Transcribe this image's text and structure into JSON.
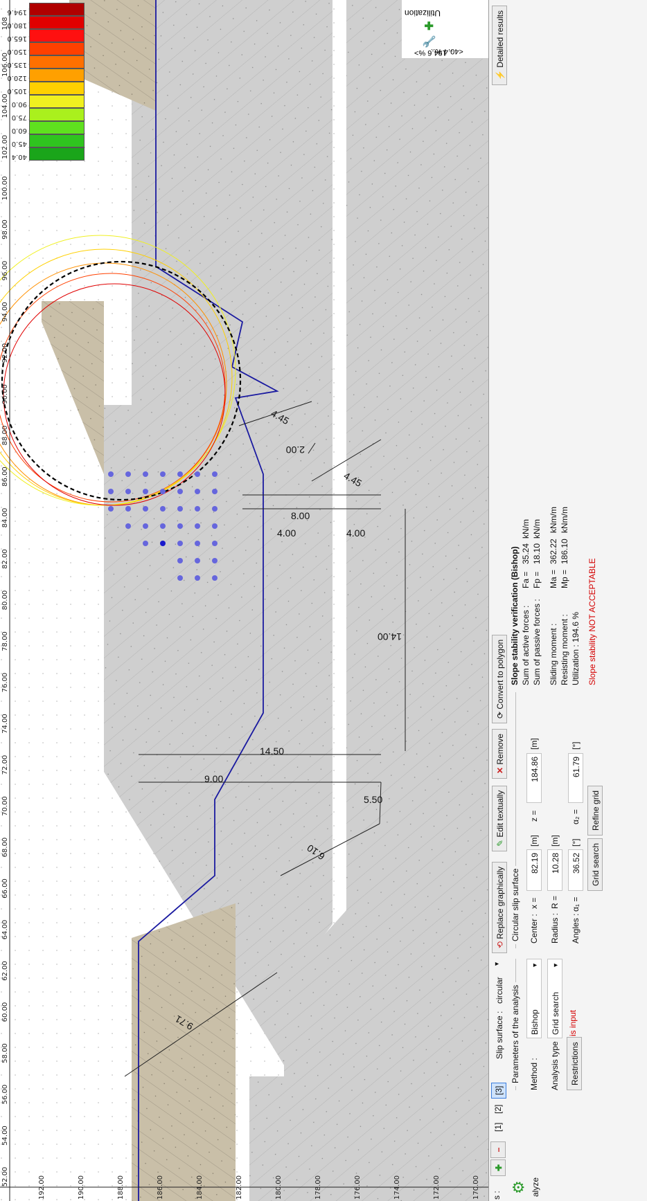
{
  "axes": {
    "x_unit": "[m]",
    "x_ticks": [
      "52.00",
      "54.00",
      "56.00",
      "58.00",
      "60.00",
      "62.00",
      "64.00",
      "66.00",
      "68.00",
      "70.00",
      "72.00",
      "74.00",
      "76.00",
      "78.00",
      "80.00",
      "82.00",
      "84.00",
      "86.00",
      "88.00",
      "90.00",
      "92.00",
      "94.00",
      "96.00",
      "98.00",
      "100.00",
      "102.00",
      "104.00",
      "106.00",
      "108"
    ],
    "y_ticks": [
      "170.00",
      "172.00",
      "174.00",
      "176.00",
      "178.00",
      "180.00",
      "182.00",
      "184.00",
      "186.00",
      "188.00",
      "190.00",
      "192.00"
    ]
  },
  "dimensions": [
    "9.71",
    "6.10",
    "5.50",
    "9.00",
    "14.50",
    "14.00",
    "4.00",
    "4.00",
    "8.00",
    "4.45",
    "2.00",
    "4.45"
  ],
  "legend": {
    "values": [
      "40.4",
      "45.0",
      "60.0",
      "75.0",
      "90.0",
      "105.0",
      "120.0",
      "135.0",
      "150.0",
      "165.0",
      "180.0",
      "194.6"
    ],
    "colors": [
      "#1aa51a",
      "#2fc41f",
      "#5fe01f",
      "#aaf01d",
      "#f0f020",
      "#ffd000",
      "#ffa000",
      "#ff7000",
      "#ff4000",
      "#ff1010",
      "#e00000",
      "#b00000"
    ]
  },
  "utilization_panel": {
    "title": "Utilization",
    "range_min": "<40.4 %..",
    "range_max": ".. 194.6 %>"
  },
  "toolbar": {
    "slip_surface_label": "Slip surface :",
    "slip_surface_value": "circular",
    "replace_graphically": "Replace graphically",
    "edit_textually": "Edit textually",
    "remove": "Remove",
    "convert_to_polygon": "Convert to polygon",
    "detailed_results": "Detailed results",
    "analyze": "alyze",
    "stages_label": "s :",
    "tabs": [
      "[1]",
      "[2]",
      "[3]"
    ]
  },
  "params": {
    "group_title": "Parameters of the analysis",
    "method_label": "Method :",
    "method_value": "Bishop",
    "analysis_type_label": "Analysis type :",
    "analysis_type_value": "Grid search",
    "restrictions_button": "Restrictions",
    "restrictions_status": "is input"
  },
  "circular": {
    "group_title": "Circular slip surface",
    "center_label": "Center :",
    "x_label": "x =",
    "x_value": "82.19",
    "x_unit": "[m]",
    "z_label": "z =",
    "z_value": "184.86",
    "z_unit": "[m]",
    "radius_label": "Radius :",
    "r_label": "R =",
    "r_value": "10.28",
    "r_unit": "[m]",
    "angles_label": "Angles :",
    "a1_label": "α₁ =",
    "a1_value": "36.52",
    "a1_unit": "[°]",
    "a2_label": "α₂ =",
    "a2_value": "61.79",
    "a2_unit": "[°]",
    "grid_search_button": "Grid search",
    "refine_grid_button": "Refine grid"
  },
  "results": {
    "title": "Slope stability verification (Bishop)",
    "active_label": "Sum of active forces :",
    "active_sym": "Fa =",
    "active_value": "35.24",
    "active_unit": "kN/m",
    "passive_label": "Sum of passive forces :",
    "passive_sym": "Fp =",
    "passive_value": "18.10",
    "passive_unit": "kN/m",
    "sliding_label": "Sliding moment :",
    "sliding_sym": "Ma =",
    "sliding_value": "362.22",
    "sliding_unit": "kNm/m",
    "resisting_label": "Resisting moment :",
    "resisting_sym": "Mp =",
    "resisting_value": "186.10",
    "resisting_unit": "kNm/m",
    "utilization_line": "Utilization : 194.6 %",
    "verdict": "Slope stability NOT ACCEPTABLE",
    "verdict_color": "#d40000"
  }
}
